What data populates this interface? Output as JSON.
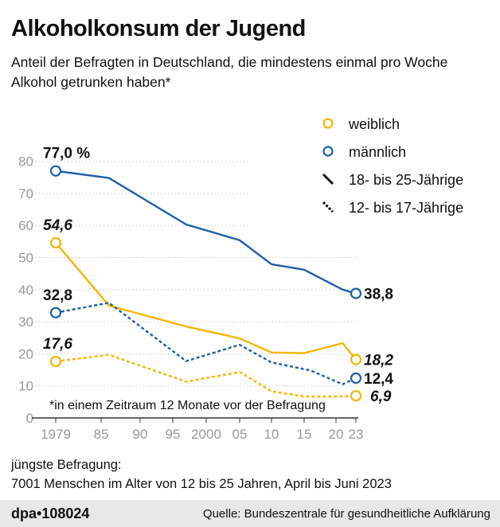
{
  "header": {
    "title": "Alkoholkonsum der Jugend",
    "subtitle": "Anteil der Befragten in Deutschland, die mindestens einmal pro Woche Alkohol getrunken haben*"
  },
  "chart_data": {
    "type": "line",
    "title": "Alkoholkonsum der Jugend",
    "ylim": [
      0,
      80
    ],
    "yticks": [
      0,
      10,
      20,
      30,
      40,
      50,
      60,
      70,
      80
    ],
    "xticks": [
      {
        "v": 1979,
        "label": "1979"
      },
      {
        "v": 1985,
        "label": "85"
      },
      {
        "v": 1990,
        "label": "90"
      },
      {
        "v": 1995,
        "label": "95"
      },
      {
        "v": 2000,
        "label": "2000"
      },
      {
        "v": 2005,
        "label": "05"
      },
      {
        "v": 2010,
        "label": "10"
      },
      {
        "v": 2015,
        "label": "15"
      },
      {
        "v": 2020,
        "label": "20"
      },
      {
        "v": 2023,
        "label": "23"
      }
    ],
    "grid": true,
    "legend_position": "top-right",
    "legend": [
      {
        "label": "weiblich",
        "kind": "circle",
        "color": "#f2b705"
      },
      {
        "label": "männlich",
        "kind": "circle",
        "color": "#1f5fa8"
      },
      {
        "label": "18- bis 25-Jährige",
        "kind": "solid",
        "color": "#111111"
      },
      {
        "label": "12- bis 17-Jährige",
        "kind": "dashed",
        "color": "#111111"
      }
    ],
    "series": [
      {
        "gender": "männlich",
        "age": "18- bis 25-Jährige",
        "color": "#1f5fa8",
        "dashed": false,
        "x": [
          1979,
          1986,
          1997,
          2005,
          2010,
          2015,
          2021,
          2023
        ],
        "y": [
          77.0,
          74.8,
          60.3,
          55.4,
          47.9,
          46.2,
          40.0,
          38.8
        ],
        "start_label": "77,0 %",
        "end_label": "38,8"
      },
      {
        "gender": "weiblich",
        "age": "18- bis 25-Jährige",
        "color": "#f2b705",
        "dashed": false,
        "x": [
          1979,
          1986,
          1997,
          2005,
          2010,
          2015,
          2021,
          2023
        ],
        "y": [
          54.6,
          35.0,
          28.5,
          24.8,
          20.4,
          20.2,
          23.3,
          18.2
        ],
        "start_label": "54,6",
        "end_label": "18,2"
      },
      {
        "gender": "männlich",
        "age": "12- bis 17-Jährige",
        "color": "#1f5fa8",
        "dashed": true,
        "x": [
          1979,
          1986,
          1997,
          2005,
          2010,
          2016,
          2021,
          2023
        ],
        "y": [
          32.8,
          35.9,
          17.7,
          22.8,
          17.3,
          14.8,
          10.5,
          12.4
        ],
        "start_label": "32,8",
        "end_label": "12,4"
      },
      {
        "gender": "weiblich",
        "age": "12- bis 17-Jährige",
        "color": "#f2b705",
        "dashed": true,
        "x": [
          1979,
          1986,
          1997,
          2005,
          2010,
          2015,
          2021,
          2023
        ],
        "y": [
          17.6,
          19.7,
          11.3,
          14.3,
          8.3,
          6.7,
          6.7,
          6.9
        ],
        "start_label": "17,6",
        "end_label": "6,9"
      }
    ],
    "annotation": "*in einem Zeitraum 12 Monate vor der Befragung"
  },
  "note": {
    "line1": "jüngste Befragung:",
    "line2": "7001 Menschen im Alter von 12 bis 25 Jahren, April bis Juni 2023"
  },
  "footer": {
    "logo": "dpa•108024",
    "source": "Quelle: Bundeszentrale für gesundheitliche Aufklärung"
  }
}
